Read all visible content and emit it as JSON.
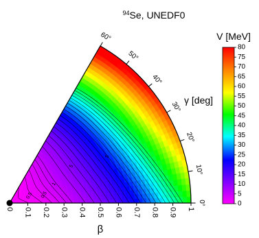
{
  "chart_data": {
    "type": "heatmap",
    "projection": "polar-wedge (beta-gamma plane)",
    "title_sup": "94",
    "title_main": "Se, UNEDF0",
    "axes": {
      "beta": {
        "label": "β",
        "range": [
          0,
          1
        ],
        "ticks": [
          "0",
          "0.1",
          "0.2",
          "0.3",
          "0.4",
          "0.5",
          "0.6",
          "0.7",
          "0.8",
          "0.9",
          "1"
        ]
      },
      "gamma": {
        "label": "γ [deg]",
        "range": [
          0,
          60
        ],
        "ticks": [
          "0°",
          "10°",
          "20°",
          "30°",
          "40°",
          "50°",
          "60°"
        ]
      }
    },
    "colorbar": {
      "label": "V [MeV]",
      "range": [
        0,
        80
      ],
      "ticks": [
        "0",
        "5",
        "10",
        "15",
        "20",
        "25",
        "30",
        "35",
        "40",
        "45",
        "50",
        "55",
        "60",
        "65",
        "70",
        "75",
        "80"
      ],
      "colormap": [
        "#ff00ff",
        "#8000ff",
        "#0000ff",
        "#00ffff",
        "#00ff00",
        "#ffff00",
        "#ff8000",
        "#ff0000"
      ]
    },
    "contour_labels": [
      "0.5",
      "0.5",
      "1",
      "5",
      "5"
    ],
    "minimum_marker": {
      "beta": 0.0,
      "gamma": 0
    }
  }
}
